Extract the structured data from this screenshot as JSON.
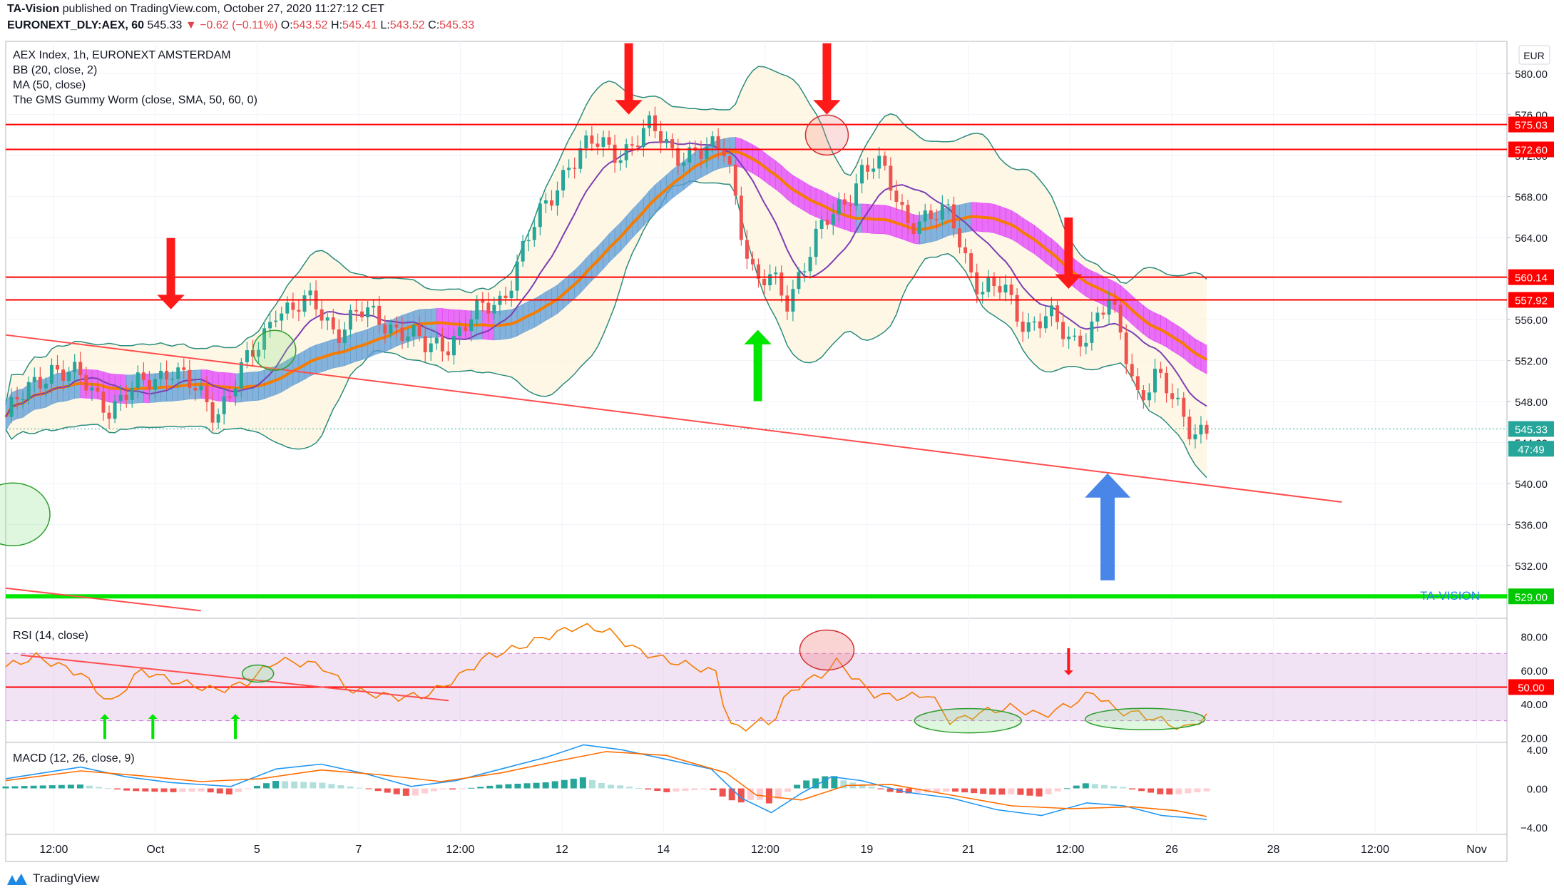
{
  "header": {
    "publisher": "TA-Vision",
    "published_text": "published on TradingView.com, October 27, 2020 11:27:12 CET",
    "symbol": "EURONEXT_DLY:AEX, 60",
    "last": "545.33",
    "change": "▼ −0.62 (−0.11%)",
    "ohlc": [
      {
        "k": "O:",
        "v": "543.52"
      },
      {
        "k": "H:",
        "v": "545.41"
      },
      {
        "k": "L:",
        "v": "543.52"
      },
      {
        "k": "C:",
        "v": "545.33"
      }
    ]
  },
  "legend": [
    "AEX Index, 1h, EURONEXT AMSTERDAM",
    "BB (20, close, 2)",
    "MA (50, close)",
    "The GMS Gummy Worm (close, SMA, 50, 60, 0)"
  ],
  "currency": "EUR",
  "watermark": "TA-VISION",
  "footer": {
    "brand": "TradingView"
  },
  "colors": {
    "up": "#26a69a",
    "down": "#ef5350",
    "level": "#ff0000",
    "support": "#00e600",
    "bb": "#2a8c7e",
    "ma": "#7b3fb3",
    "worm_up": "#5b9bd5",
    "worm_down": "#e040fb",
    "worm_line": "#f57c00",
    "trend": "#ff4d4d",
    "arrow_up_blue": "#4a86e8",
    "rsi": "#f57c00",
    "macd": "#2196f3",
    "signal": "#ff6d00"
  },
  "chart_data": [
    {
      "type": "candlestick",
      "panel": "price",
      "title": "AEX Index, 1h, EURONEXT AMSTERDAM",
      "ylim": [
        527,
        583
      ],
      "y_ticks": [
        532,
        536,
        540,
        544,
        548,
        552,
        556,
        560,
        564,
        568,
        572,
        576,
        580
      ],
      "x_ticks": [
        "12:00",
        "Oct",
        "5",
        "7",
        "12:00",
        "12",
        "14",
        "12:00",
        "19",
        "21",
        "12:00",
        "26",
        "28",
        "12:00",
        "Nov"
      ],
      "price_labels": [
        {
          "label": "575.03",
          "value": 575.03,
          "kind": "level"
        },
        {
          "label": "572.60",
          "value": 572.6,
          "kind": "level"
        },
        {
          "label": "560.14",
          "value": 560.14,
          "kind": "level"
        },
        {
          "label": "557.92",
          "value": 557.92,
          "kind": "level"
        },
        {
          "label": "545.33",
          "value": 545.33,
          "kind": "last"
        },
        {
          "label": "47:49",
          "value": 543.4,
          "kind": "countdown"
        },
        {
          "label": "529.00",
          "value": 529.0,
          "kind": "support"
        }
      ],
      "close_path": [
        {
          "x": 0.0,
          "y": 546.5
        },
        {
          "x": 0.03,
          "y": 551.5
        },
        {
          "x": 0.05,
          "y": 550.0
        },
        {
          "x": 0.07,
          "y": 547.5
        },
        {
          "x": 0.09,
          "y": 549.5
        },
        {
          "x": 0.11,
          "y": 551.5
        },
        {
          "x": 0.125,
          "y": 549.0
        },
        {
          "x": 0.14,
          "y": 547.0
        },
        {
          "x": 0.155,
          "y": 550.5
        },
        {
          "x": 0.17,
          "y": 553.5
        },
        {
          "x": 0.18,
          "y": 557.5
        },
        {
          "x": 0.19,
          "y": 557.0
        },
        {
          "x": 0.205,
          "y": 557.5
        },
        {
          "x": 0.22,
          "y": 555.0
        },
        {
          "x": 0.235,
          "y": 556.5
        },
        {
          "x": 0.25,
          "y": 556.0
        },
        {
          "x": 0.265,
          "y": 555.0
        },
        {
          "x": 0.28,
          "y": 553.0
        },
        {
          "x": 0.295,
          "y": 554.0
        },
        {
          "x": 0.31,
          "y": 556.0
        },
        {
          "x": 0.33,
          "y": 558.0
        },
        {
          "x": 0.345,
          "y": 563.0
        },
        {
          "x": 0.36,
          "y": 567.0
        },
        {
          "x": 0.375,
          "y": 571.5
        },
        {
          "x": 0.39,
          "y": 573.0
        },
        {
          "x": 0.41,
          "y": 572.5
        },
        {
          "x": 0.43,
          "y": 574.5
        },
        {
          "x": 0.445,
          "y": 572.5
        },
        {
          "x": 0.465,
          "y": 572.0
        },
        {
          "x": 0.48,
          "y": 573.0
        },
        {
          "x": 0.49,
          "y": 565.0
        },
        {
          "x": 0.5,
          "y": 559.0
        },
        {
          "x": 0.51,
          "y": 560.0
        },
        {
          "x": 0.52,
          "y": 558.0
        },
        {
          "x": 0.53,
          "y": 561.0
        },
        {
          "x": 0.545,
          "y": 565.0
        },
        {
          "x": 0.56,
          "y": 568.0
        },
        {
          "x": 0.57,
          "y": 570.5
        },
        {
          "x": 0.58,
          "y": 571.0
        },
        {
          "x": 0.59,
          "y": 569.0
        },
        {
          "x": 0.6,
          "y": 566.0
        },
        {
          "x": 0.615,
          "y": 565.5
        },
        {
          "x": 0.63,
          "y": 566.5
        },
        {
          "x": 0.64,
          "y": 562.0
        },
        {
          "x": 0.65,
          "y": 558.5
        },
        {
          "x": 0.665,
          "y": 559.0
        },
        {
          "x": 0.68,
          "y": 555.5
        },
        {
          "x": 0.695,
          "y": 556.0
        },
        {
          "x": 0.71,
          "y": 554.0
        },
        {
          "x": 0.725,
          "y": 555.5
        },
        {
          "x": 0.735,
          "y": 557.5
        },
        {
          "x": 0.745,
          "y": 553.5
        },
        {
          "x": 0.755,
          "y": 548.5
        },
        {
          "x": 0.765,
          "y": 550.5
        },
        {
          "x": 0.775,
          "y": 548.5
        },
        {
          "x": 0.79,
          "y": 545.5
        },
        {
          "x": 0.8,
          "y": 545.33
        }
      ]
    },
    {
      "type": "line",
      "panel": "rsi",
      "title": "RSI (14, close)",
      "ylim": [
        18,
        90
      ],
      "y_ticks": [
        20,
        40,
        60,
        80
      ],
      "band": [
        30,
        70
      ],
      "price_labels": [
        {
          "label": "50.00",
          "value": 50
        }
      ],
      "series": [
        {
          "name": "RSI (14, close)",
          "values": [
            {
              "x": 0.0,
              "y": 62
            },
            {
              "x": 0.02,
              "y": 68
            },
            {
              "x": 0.05,
              "y": 58
            },
            {
              "x": 0.07,
              "y": 40
            },
            {
              "x": 0.09,
              "y": 60
            },
            {
              "x": 0.11,
              "y": 54
            },
            {
              "x": 0.14,
              "y": 48
            },
            {
              "x": 0.16,
              "y": 52
            },
            {
              "x": 0.18,
              "y": 66
            },
            {
              "x": 0.21,
              "y": 63
            },
            {
              "x": 0.23,
              "y": 48
            },
            {
              "x": 0.26,
              "y": 44
            },
            {
              "x": 0.28,
              "y": 45
            },
            {
              "x": 0.3,
              "y": 55
            },
            {
              "x": 0.32,
              "y": 68
            },
            {
              "x": 0.34,
              "y": 73
            },
            {
              "x": 0.36,
              "y": 80
            },
            {
              "x": 0.38,
              "y": 86
            },
            {
              "x": 0.4,
              "y": 84
            },
            {
              "x": 0.42,
              "y": 72
            },
            {
              "x": 0.44,
              "y": 66
            },
            {
              "x": 0.46,
              "y": 62
            },
            {
              "x": 0.475,
              "y": 58
            },
            {
              "x": 0.48,
              "y": 30
            },
            {
              "x": 0.49,
              "y": 24
            },
            {
              "x": 0.5,
              "y": 30
            },
            {
              "x": 0.51,
              "y": 28
            },
            {
              "x": 0.52,
              "y": 45
            },
            {
              "x": 0.53,
              "y": 52
            },
            {
              "x": 0.545,
              "y": 58
            },
            {
              "x": 0.555,
              "y": 66
            },
            {
              "x": 0.565,
              "y": 55
            },
            {
              "x": 0.58,
              "y": 45
            },
            {
              "x": 0.6,
              "y": 44
            },
            {
              "x": 0.615,
              "y": 46
            },
            {
              "x": 0.63,
              "y": 29
            },
            {
              "x": 0.65,
              "y": 35
            },
            {
              "x": 0.67,
              "y": 38
            },
            {
              "x": 0.69,
              "y": 33
            },
            {
              "x": 0.71,
              "y": 40
            },
            {
              "x": 0.725,
              "y": 47
            },
            {
              "x": 0.74,
              "y": 36
            },
            {
              "x": 0.755,
              "y": 34
            },
            {
              "x": 0.77,
              "y": 30
            },
            {
              "x": 0.785,
              "y": 25
            },
            {
              "x": 0.8,
              "y": 33
            }
          ]
        }
      ]
    },
    {
      "type": "bar",
      "panel": "macd",
      "title": "MACD (12, 26, close, 9)",
      "ylim": [
        -4.6,
        4.6
      ],
      "y_ticks": [
        4.0,
        0.0,
        -4.0
      ],
      "y_tick_labels": [
        "4.00",
        "0.00",
        "−4.00"
      ],
      "series": [
        {
          "name": "MACD",
          "values": [
            {
              "x": 0.0,
              "y": 1.0
            },
            {
              "x": 0.05,
              "y": 2.2
            },
            {
              "x": 0.08,
              "y": 1.2
            },
            {
              "x": 0.11,
              "y": 0.6
            },
            {
              "x": 0.15,
              "y": 0.2
            },
            {
              "x": 0.18,
              "y": 2.0
            },
            {
              "x": 0.21,
              "y": 2.5
            },
            {
              "x": 0.24,
              "y": 1.5
            },
            {
              "x": 0.27,
              "y": 0.2
            },
            {
              "x": 0.3,
              "y": 0.8
            },
            {
              "x": 0.33,
              "y": 2.0
            },
            {
              "x": 0.36,
              "y": 3.2
            },
            {
              "x": 0.385,
              "y": 4.5
            },
            {
              "x": 0.41,
              "y": 4.0
            },
            {
              "x": 0.44,
              "y": 3.0
            },
            {
              "x": 0.47,
              "y": 2.0
            },
            {
              "x": 0.49,
              "y": -1.0
            },
            {
              "x": 0.51,
              "y": -2.5
            },
            {
              "x": 0.53,
              "y": -0.5
            },
            {
              "x": 0.55,
              "y": 1.2
            },
            {
              "x": 0.57,
              "y": 0.8
            },
            {
              "x": 0.6,
              "y": -0.4
            },
            {
              "x": 0.63,
              "y": -1.0
            },
            {
              "x": 0.66,
              "y": -2.2
            },
            {
              "x": 0.69,
              "y": -2.8
            },
            {
              "x": 0.72,
              "y": -1.5
            },
            {
              "x": 0.745,
              "y": -1.8
            },
            {
              "x": 0.77,
              "y": -2.8
            },
            {
              "x": 0.8,
              "y": -3.2
            }
          ]
        },
        {
          "name": "Signal",
          "values": [
            {
              "x": 0.0,
              "y": 0.8
            },
            {
              "x": 0.05,
              "y": 1.8
            },
            {
              "x": 0.09,
              "y": 1.3
            },
            {
              "x": 0.13,
              "y": 0.7
            },
            {
              "x": 0.17,
              "y": 1.0
            },
            {
              "x": 0.21,
              "y": 1.9
            },
            {
              "x": 0.25,
              "y": 1.4
            },
            {
              "x": 0.29,
              "y": 0.7
            },
            {
              "x": 0.33,
              "y": 1.6
            },
            {
              "x": 0.37,
              "y": 2.9
            },
            {
              "x": 0.4,
              "y": 3.8
            },
            {
              "x": 0.44,
              "y": 3.4
            },
            {
              "x": 0.48,
              "y": 1.6
            },
            {
              "x": 0.5,
              "y": -0.7
            },
            {
              "x": 0.53,
              "y": -1.2
            },
            {
              "x": 0.56,
              "y": 0.3
            },
            {
              "x": 0.59,
              "y": 0.4
            },
            {
              "x": 0.63,
              "y": -0.7
            },
            {
              "x": 0.67,
              "y": -1.8
            },
            {
              "x": 0.71,
              "y": -2.1
            },
            {
              "x": 0.75,
              "y": -1.9
            },
            {
              "x": 0.78,
              "y": -2.3
            },
            {
              "x": 0.8,
              "y": -2.9
            }
          ]
        }
      ]
    }
  ],
  "annotations": [
    {
      "type": "arrow_down",
      "color": "red",
      "x": 0.11,
      "panel": "price",
      "y": 557
    },
    {
      "type": "arrow_down",
      "color": "red",
      "x": 0.415,
      "panel": "price",
      "y": 576
    },
    {
      "type": "arrow_down",
      "color": "red",
      "x": 0.547,
      "panel": "price",
      "y": 576
    },
    {
      "type": "arrow_down",
      "color": "red",
      "x": 0.708,
      "panel": "price",
      "y": 559
    },
    {
      "type": "arrow_up",
      "color": "green",
      "x": 0.501,
      "panel": "price",
      "y": 555
    },
    {
      "type": "arrow_up",
      "color": "blue",
      "x": 0.734,
      "panel": "price",
      "y": 541
    },
    {
      "type": "ellipse",
      "x": 0.547,
      "panel": "price",
      "y": 574
    },
    {
      "type": "ellipse",
      "x": 0.179,
      "panel": "price",
      "y": 553
    },
    {
      "type": "ellipse",
      "x": 0.0,
      "panel": "price",
      "y": 537
    }
  ]
}
